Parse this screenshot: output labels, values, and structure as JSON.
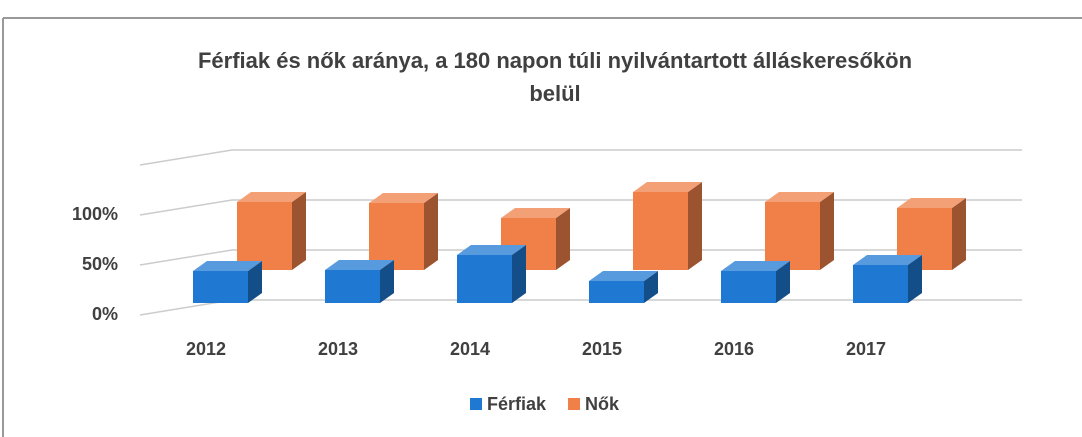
{
  "chart_data": {
    "type": "bar3d",
    "title": "Férfiak és nők aránya, a 180 napon túli nyilvántartott álláskeresőkön",
    "subtitle": "belül",
    "categories": [
      "2012",
      "2013",
      "2014",
      "2015",
      "2016",
      "2017"
    ],
    "series": [
      {
        "name": "Férfiak",
        "color": "#1f78d1",
        "values": [
          32,
          33,
          48,
          22,
          32,
          38
        ]
      },
      {
        "name": "Nők",
        "color": "#f08048",
        "values": [
          68,
          67,
          52,
          78,
          68,
          62
        ]
      }
    ],
    "ylim": [
      0,
      150
    ],
    "yticks": [
      {
        "value": 0,
        "label": "0%"
      },
      {
        "value": 50,
        "label": "50%"
      },
      {
        "value": 100,
        "label": "100%"
      }
    ],
    "grid": true,
    "legend": "bottom"
  }
}
